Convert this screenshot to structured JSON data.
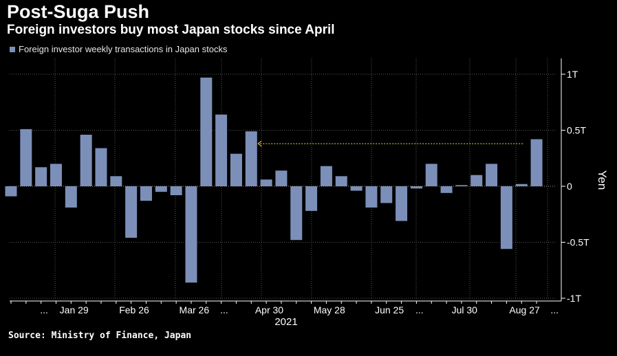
{
  "header": {
    "title": "Post-Suga Push",
    "subtitle": "Foreign investors buy most Japan stocks since April"
  },
  "footer": {
    "source": "Source: Ministry of Finance, Japan"
  },
  "colors": {
    "bar": "#7b8fb8",
    "background": "#000000",
    "arrow": "#d8c23a",
    "grid": "#5a5a5a"
  },
  "chart_data": {
    "type": "bar",
    "legend": "Foreign investor weekly transactions in Japan stocks",
    "ylabel": "Yen",
    "xlabel": "2021",
    "ylim": [
      -1.05,
      1.05
    ],
    "y_ticks": [
      {
        "value": 1,
        "label": "1T"
      },
      {
        "value": 0.5,
        "label": "0.5T"
      },
      {
        "value": 0,
        "label": "0"
      },
      {
        "value": -0.5,
        "label": "-0.5T"
      },
      {
        "value": -1,
        "label": "-1T"
      }
    ],
    "x_tick_labels": [
      {
        "index": 2.2,
        "label": "..."
      },
      {
        "index": 4.2,
        "label": "Jan 29"
      },
      {
        "index": 8.2,
        "label": "Feb 26"
      },
      {
        "index": 12.2,
        "label": "Mar 26"
      },
      {
        "index": 14.2,
        "label": "..."
      },
      {
        "index": 17.2,
        "label": "Apr 30"
      },
      {
        "index": 21.2,
        "label": "May 28"
      },
      {
        "index": 25.2,
        "label": "Jun 25"
      },
      {
        "index": 27.2,
        "label": "..."
      },
      {
        "index": 30.2,
        "label": "Jul 30"
      },
      {
        "index": 34.2,
        "label": "Aug 27"
      },
      {
        "index": 36.2,
        "label": "..."
      }
    ],
    "values": [
      -0.09,
      0.51,
      0.17,
      0.2,
      -0.19,
      0.46,
      0.34,
      0.09,
      -0.46,
      -0.13,
      -0.05,
      -0.08,
      -0.86,
      0.97,
      0.64,
      0.29,
      0.49,
      0.06,
      0.14,
      -0.48,
      -0.22,
      0.18,
      0.09,
      -0.04,
      -0.19,
      -0.15,
      -0.31,
      -0.02,
      0.2,
      -0.06,
      0.01,
      0.1,
      0.2,
      -0.56,
      0.02,
      0.42
    ],
    "annotation": {
      "type": "dotted-arrow",
      "from_index": 34,
      "to_index": 16,
      "value": 0.38
    }
  }
}
